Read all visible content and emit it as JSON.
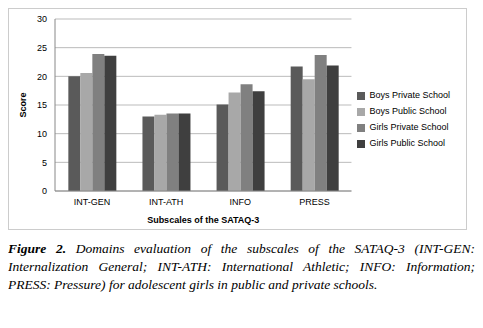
{
  "chart_data": {
    "type": "bar",
    "categories": [
      "INT-GEN",
      "INT-ATH",
      "INFO",
      "PRESS"
    ],
    "series": [
      {
        "name": "Boys Private School",
        "color": "#5a5a5a",
        "values": [
          20,
          13,
          15.1,
          21.7
        ]
      },
      {
        "name": "Boys Public School",
        "color": "#a8a8a8",
        "values": [
          20.6,
          13.3,
          17.2,
          19.5
        ]
      },
      {
        "name": "Girls Private School",
        "color": "#808080",
        "values": [
          23.9,
          13.5,
          18.6,
          23.7
        ]
      },
      {
        "name": "Girls Public School",
        "color": "#3f3f3f",
        "values": [
          23.6,
          13.5,
          17.4,
          21.9
        ]
      }
    ],
    "x_label": "Subscales of the SATAQ-3",
    "y_label": "Score",
    "ylim": [
      0,
      30
    ],
    "yticks": [
      0,
      5,
      10,
      15,
      20,
      25,
      30
    ],
    "grid": true,
    "legend": "right",
    "caption_label": "Figure 2.",
    "caption": "Domains evaluation of the subscales of the SATAQ-3 (INT-GEN: Internalization General; INT-ATH: International Athletic; INFO: Information; PRESS: Pressure) for adolescent girls in public and private schools."
  }
}
